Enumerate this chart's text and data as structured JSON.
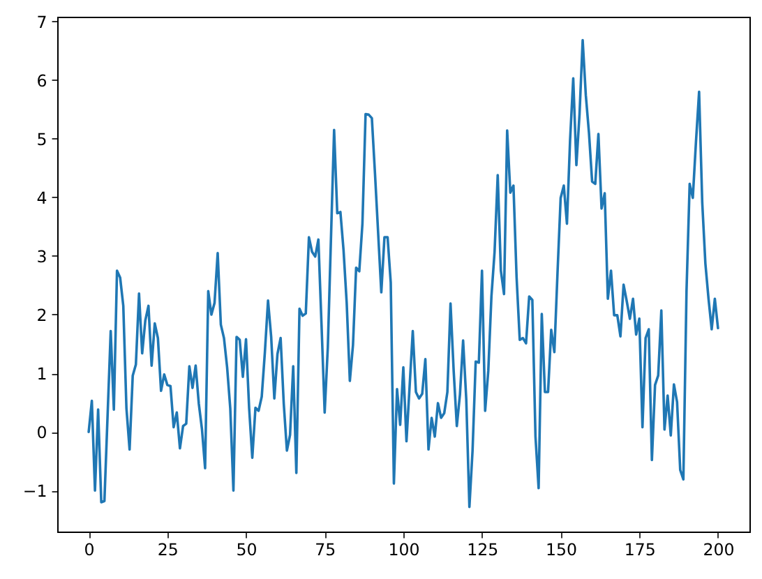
{
  "chart_data": {
    "type": "line",
    "color": "#1f77b4",
    "x": [
      0,
      1,
      2,
      3,
      4,
      5,
      7,
      8,
      9,
      10,
      11,
      12,
      13,
      14,
      15,
      16,
      17,
      18,
      19,
      20,
      21,
      22,
      23,
      24,
      25,
      26,
      27,
      28,
      29,
      30,
      31,
      32,
      33,
      34,
      35,
      36,
      37,
      38,
      39,
      40,
      41,
      42,
      43,
      44,
      45,
      46,
      47,
      48,
      49,
      50,
      51,
      52,
      53,
      54,
      55,
      56,
      57,
      58,
      59,
      60,
      61,
      62,
      63,
      64,
      65,
      66,
      67,
      68,
      69,
      70,
      71,
      72,
      73,
      74,
      75,
      76,
      78,
      79,
      80,
      81,
      82,
      83,
      84,
      85,
      86,
      87,
      88,
      89,
      90,
      91,
      93,
      94,
      95,
      96,
      97,
      98,
      99,
      100,
      101,
      103,
      104,
      105,
      106,
      107,
      108,
      109,
      110,
      111,
      112,
      113,
      114,
      115,
      116,
      117,
      118,
      119,
      120,
      121,
      122,
      123,
      124,
      125,
      126,
      127,
      128,
      129,
      130,
      131,
      132,
      133,
      134,
      135,
      136,
      137,
      138,
      139,
      140,
      141,
      142,
      143,
      144,
      145,
      146,
      147,
      148,
      149,
      150,
      151,
      152,
      153,
      154,
      155,
      156,
      157,
      158,
      159,
      160,
      161,
      162,
      163,
      164,
      165,
      166,
      167,
      168,
      169,
      170,
      171,
      172,
      173,
      174,
      175,
      176,
      177,
      178,
      179,
      180,
      181,
      182,
      183,
      184,
      185,
      186,
      187,
      188,
      189,
      190,
      191,
      192,
      193,
      194,
      195,
      196,
      197,
      198,
      199,
      200
    ],
    "values": [
      0,
      0.53,
      -1.0,
      0.38,
      -1.2,
      -1.18,
      1.72,
      0.38,
      2.75,
      2.63,
      2.15,
      0.4,
      -0.3,
      0.96,
      1.15,
      2.36,
      1.34,
      1.9,
      2.15,
      1.13,
      1.85,
      1.6,
      0.7,
      0.98,
      0.8,
      0.78,
      0.08,
      0.33,
      -0.28,
      0.1,
      0.14,
      1.12,
      0.75,
      1.13,
      0.48,
      0.05,
      -0.62,
      2.4,
      2.0,
      2.2,
      3.05,
      1.83,
      1.6,
      1.1,
      0.4,
      -1.0,
      1.62,
      1.57,
      0.94,
      1.58,
      0.4,
      -0.44,
      0.41,
      0.36,
      0.6,
      1.36,
      2.24,
      1.62,
      0.57,
      1.33,
      1.6,
      0.48,
      -0.32,
      -0.05,
      1.12,
      -0.7,
      2.1,
      1.98,
      2.02,
      3.32,
      3.07,
      2.99,
      3.28,
      1.83,
      0.33,
      1.44,
      5.15,
      3.73,
      3.75,
      3.1,
      2.2,
      0.87,
      1.48,
      2.8,
      2.74,
      3.55,
      5.42,
      5.41,
      5.35,
      4.4,
      2.38,
      3.32,
      3.32,
      2.55,
      -0.88,
      0.73,
      0.12,
      1.1,
      -0.16,
      1.72,
      0.68,
      0.57,
      0.65,
      1.24,
      -0.3,
      0.24,
      -0.08,
      0.49,
      0.24,
      0.32,
      0.68,
      2.19,
      1.04,
      0.1,
      0.64,
      1.56,
      0.56,
      -1.28,
      -0.32,
      1.2,
      1.18,
      2.75,
      0.36,
      1.04,
      2.31,
      3.07,
      4.38,
      2.75,
      2.35,
      5.14,
      4.08,
      4.2,
      2.63,
      1.57,
      1.6,
      1.51,
      2.31,
      2.25,
      -0.08,
      -0.96,
      2.01,
      0.68,
      0.68,
      1.74,
      1.36,
      2.71,
      3.99,
      4.2,
      3.55,
      4.98,
      6.03,
      4.55,
      5.42,
      6.68,
      5.74,
      5.1,
      4.27,
      4.23,
      5.08,
      3.81,
      4.07,
      2.27,
      2.75,
      1.99,
      1.99,
      1.63,
      2.51,
      2.23,
      1.93,
      2.27,
      1.66,
      1.93,
      0.08,
      1.6,
      1.75,
      -0.48,
      0.8,
      0.96,
      2.07,
      0.04,
      0.62,
      -0.06,
      0.81,
      0.51,
      -0.65,
      -0.81,
      2.4,
      4.23,
      3.99,
      4.94,
      5.8,
      3.91,
      2.87,
      2.27,
      1.75,
      2.27,
      1.77
    ],
    "xlim": [
      -10,
      210
    ],
    "ylim": [
      -1.7,
      7.08
    ],
    "xticks": [
      0,
      25,
      50,
      75,
      100,
      125,
      150,
      175,
      200
    ],
    "yticks": [
      -1,
      0,
      1,
      2,
      3,
      4,
      5,
      6,
      7
    ]
  }
}
